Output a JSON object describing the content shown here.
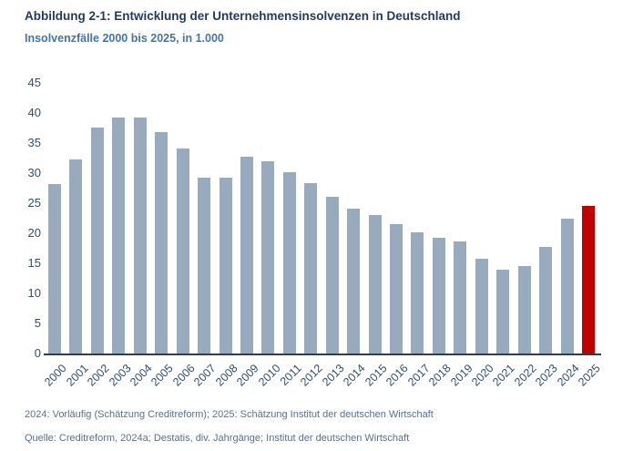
{
  "title": "Abbildung 2-1: Entwicklung der Unternehmensinsolvenzen in Deutschland",
  "subtitle": "Insolvenzfälle 2000 bis 2025, in 1.000",
  "footnotes": [
    "2024: Vorläufig (Schätzung Creditreform); 2025: Schätzung Institut der deutschen Wirtschaft",
    "Quelle: Creditreform, 2024a; Destatis, div. Jahrgänge; Institut der deutschen Wirtschaft"
  ],
  "colors": {
    "background": "#ffffff",
    "title_color": "#1F3A5F",
    "subtitle_color": "#4176A5",
    "axis_text_color": "#2E4E6E",
    "axis_line_color": "#2A3F54",
    "footer_color": "#5B7086"
  },
  "chart_data": {
    "type": "bar",
    "title": "Entwicklung der Unternehmensinsolvenzen in Deutschland",
    "subtitle": "Insolvenzfälle 2000 bis 2025, in 1.000",
    "xlabel": "",
    "ylabel": "",
    "ylim": [
      0,
      45
    ],
    "yticks": [
      0,
      5,
      10,
      15,
      20,
      25,
      30,
      35,
      40,
      45
    ],
    "grid": false,
    "legend": false,
    "bar_color": "#97AABE",
    "highlight_color": "#C00000",
    "highlight_category": "2025",
    "categories": [
      "2000",
      "2001",
      "2002",
      "2003",
      "2004",
      "2005",
      "2006",
      "2007",
      "2008",
      "2009",
      "2010",
      "2011",
      "2012",
      "2013",
      "2014",
      "2015",
      "2016",
      "2017",
      "2018",
      "2019",
      "2020",
      "2021",
      "2022",
      "2023",
      "2024",
      "2025"
    ],
    "values": [
      28.2,
      32.3,
      37.6,
      39.3,
      39.2,
      36.8,
      34.1,
      29.2,
      29.3,
      32.7,
      32.0,
      30.1,
      28.3,
      26.0,
      24.1,
      23.1,
      21.5,
      20.1,
      19.3,
      18.7,
      15.8,
      14.0,
      14.6,
      17.8,
      22.4,
      24.5
    ]
  }
}
